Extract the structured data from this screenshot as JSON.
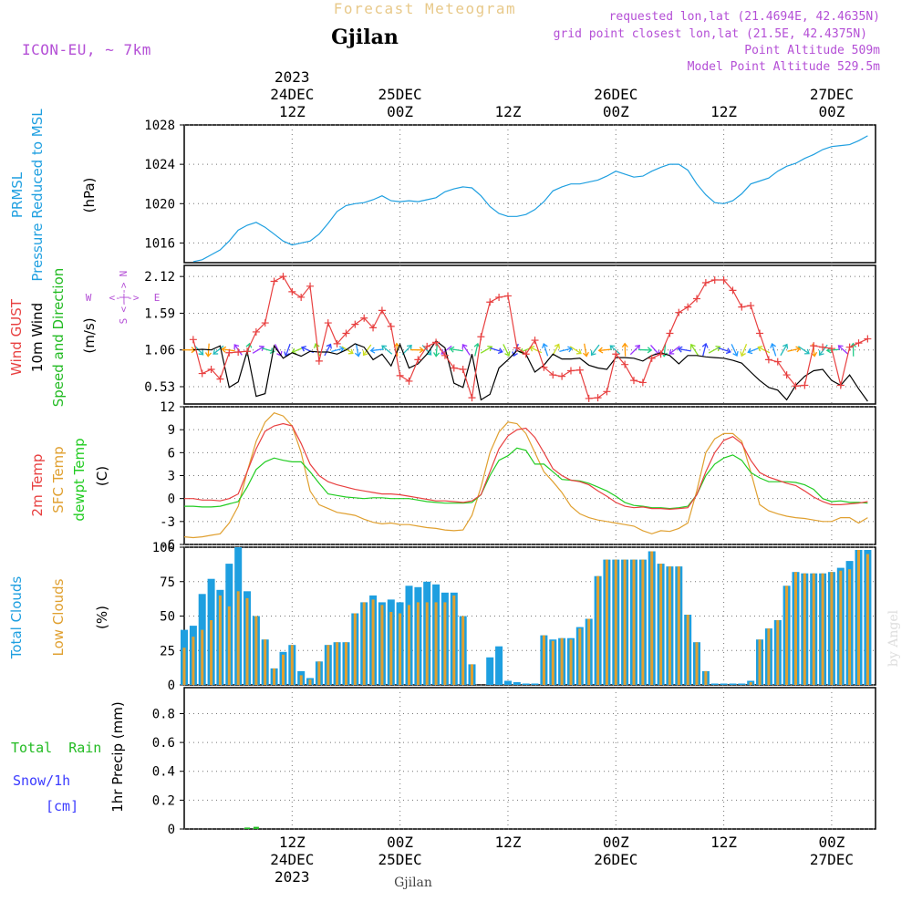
{
  "header": {
    "product": "Forecast Meteogram",
    "location": "Gjilan",
    "model": "ICON-EU, ~ 7km",
    "requested": "requested lon,lat (21.4694E, 42.4635N)",
    "gridpoint": "grid point closest lon,lat (21.5E, 42.4375N)",
    "point_alt": "Point Altitude 509m",
    "model_alt": "Model Point Altitude 529.5m"
  },
  "time_axis": {
    "top_labels": [
      {
        "hour": 12,
        "lines": [
          "2023",
          "24DEC",
          "12Z"
        ]
      },
      {
        "hour": 24,
        "lines": [
          "25DEC",
          "00Z"
        ]
      },
      {
        "hour": 36,
        "lines": [
          "12Z"
        ]
      },
      {
        "hour": 48,
        "lines": [
          "26DEC",
          "00Z"
        ]
      },
      {
        "hour": 60,
        "lines": [
          "12Z"
        ]
      },
      {
        "hour": 72,
        "lines": [
          "27DEC",
          "00Z"
        ]
      }
    ],
    "bottom_labels": [
      {
        "hour": 12,
        "lines": [
          "12Z",
          "24DEC",
          "2023"
        ]
      },
      {
        "hour": 24,
        "lines": [
          "00Z",
          "25DEC"
        ]
      },
      {
        "hour": 36,
        "lines": [
          "12Z"
        ]
      },
      {
        "hour": 48,
        "lines": [
          "00Z",
          "26DEC"
        ]
      },
      {
        "hour": 60,
        "lines": [
          "12Z"
        ]
      },
      {
        "hour": 72,
        "lines": [
          "00Z",
          "27DEC"
        ]
      }
    ],
    "footer": "Gjilan",
    "watermark": "by Angel"
  },
  "colors": {
    "pressure": "#1e9fe0",
    "gust": "#e84040",
    "wind": "#000000",
    "direction": "#22bb22",
    "t2m": "#e84040",
    "tsfc": "#e0a030",
    "dewpt": "#22cc22",
    "total_clouds": "#1e9fe0",
    "low_clouds": "#e0a030",
    "rain": "#22bb22",
    "snow": "#3b3bff"
  },
  "chart_data": [
    {
      "type": "line",
      "panel": "pressure",
      "labels": {
        "line1": "PRMSL",
        "line2": "Pressure Reduced to MSL",
        "unit": "(hPa)"
      },
      "ylim": [
        1014,
        1028
      ],
      "yticks": [
        1016,
        1020,
        1024,
        1028
      ],
      "grid": true,
      "x": [
        1,
        2,
        3,
        4,
        5,
        6,
        7,
        8,
        9,
        10,
        11,
        12,
        13,
        14,
        15,
        16,
        17,
        18,
        19,
        20,
        21,
        22,
        23,
        24,
        25,
        26,
        27,
        28,
        29,
        30,
        31,
        32,
        33,
        34,
        35,
        36,
        37,
        38,
        39,
        40,
        41,
        42,
        43,
        44,
        45,
        46,
        47,
        48,
        49,
        50,
        51,
        52,
        53,
        54,
        55,
        56,
        57,
        58,
        59,
        60,
        61,
        62,
        63,
        64,
        65,
        66,
        67,
        68,
        69,
        70,
        71,
        72,
        73,
        74,
        75,
        76
      ],
      "series": [
        {
          "name": "PRMSL",
          "values": [
            1014.1,
            1014.3,
            1014.8,
            1015.3,
            1016.2,
            1017.3,
            1017.8,
            1018.1,
            1017.6,
            1016.9,
            1016.2,
            1015.8,
            1016.0,
            1016.2,
            1016.9,
            1018.0,
            1019.2,
            1019.8,
            1020.0,
            1020.1,
            1020.4,
            1020.8,
            1020.3,
            1020.2,
            1020.3,
            1020.2,
            1020.4,
            1020.6,
            1021.2,
            1021.5,
            1021.7,
            1021.6,
            1020.8,
            1019.7,
            1019.0,
            1018.7,
            1018.7,
            1018.9,
            1019.4,
            1020.2,
            1021.3,
            1021.7,
            1022.0,
            1022.0,
            1022.2,
            1022.4,
            1022.8,
            1023.3,
            1023.0,
            1022.7,
            1022.8,
            1023.3,
            1023.7,
            1024.0,
            1024.0,
            1023.4,
            1022.0,
            1020.9,
            1020.1,
            1020.0,
            1020.3,
            1021.0,
            1022.0,
            1022.3,
            1022.6,
            1023.3,
            1023.8,
            1024.1,
            1024.6,
            1025.0,
            1025.5,
            1025.8,
            1025.9,
            1026.0,
            1026.4,
            1026.9
          ]
        }
      ]
    },
    {
      "type": "line",
      "panel": "wind",
      "labels": {
        "gust": "Wind GUST",
        "wind": "10m Wind",
        "dir": "Speed and Direction",
        "unit": "(m/s)",
        "compass_n": "N",
        "compass_e": "E",
        "compass_s": "S",
        "compass_w": "W",
        "compass_arrow": "<-|->"
      },
      "ylim": [
        0.28,
        2.28
      ],
      "yticks": [
        0.53,
        1.06,
        1.59,
        2.12
      ],
      "grid": true,
      "x": [
        1,
        2,
        3,
        4,
        5,
        6,
        7,
        8,
        9,
        10,
        11,
        12,
        13,
        14,
        15,
        16,
        17,
        18,
        19,
        20,
        21,
        22,
        23,
        24,
        25,
        26,
        27,
        28,
        29,
        30,
        31,
        32,
        33,
        34,
        35,
        36,
        37,
        38,
        39,
        40,
        41,
        42,
        43,
        44,
        45,
        46,
        47,
        48,
        49,
        50,
        51,
        52,
        53,
        54,
        55,
        56,
        57,
        58,
        59,
        60,
        61,
        62,
        63,
        64,
        65,
        66,
        67,
        68,
        69,
        70,
        71,
        72,
        73,
        74,
        75,
        76
      ],
      "series": [
        {
          "name": "Wind GUST",
          "values": [
            1.21,
            0.72,
            0.78,
            0.64,
            1.02,
            1.03,
            1.04,
            1.32,
            1.45,
            2.05,
            2.12,
            1.9,
            1.82,
            1.98,
            0.9,
            1.45,
            1.15,
            1.3,
            1.43,
            1.52,
            1.38,
            1.63,
            1.4,
            0.69,
            0.61,
            0.92,
            1.11,
            1.17,
            0.98,
            0.8,
            0.78,
            0.37,
            1.25,
            1.75,
            1.82,
            1.84,
            1.09,
            1.0,
            1.2,
            0.81,
            0.7,
            0.68,
            0.76,
            0.77,
            0.36,
            0.37,
            0.46,
            1.0,
            0.85,
            0.62,
            0.59,
            0.94,
            1.0,
            1.3,
            1.6,
            1.68,
            1.8,
            2.03,
            2.07,
            2.07,
            1.92,
            1.68,
            1.7,
            1.3,
            0.92,
            0.89,
            0.7,
            0.54,
            0.55,
            1.12,
            1.1,
            1.08,
            0.55,
            1.1,
            1.16,
            1.22
          ]
        },
        {
          "name": "10m Wind",
          "values": [
            1.06,
            1.07,
            1.06,
            1.12,
            0.52,
            0.6,
            1.04,
            0.39,
            0.43,
            1.12,
            0.94,
            1.02,
            0.97,
            1.04,
            1.03,
            1.03,
            1.0,
            1.06,
            1.15,
            1.1,
            0.92,
            1.0,
            0.83,
            1.14,
            0.8,
            0.86,
            1.0,
            1.19,
            1.09,
            0.58,
            0.52,
            1.0,
            0.34,
            0.42,
            0.8,
            0.92,
            1.05,
            1.0,
            0.74,
            0.84,
            1.0,
            0.93,
            0.93,
            0.94,
            0.84,
            0.8,
            0.78,
            0.95,
            0.95,
            0.94,
            0.9,
            0.98,
            1.02,
            0.98,
            0.86,
            0.98,
            0.98,
            0.96,
            0.95,
            0.94,
            0.91,
            0.87,
            0.74,
            0.62,
            0.52,
            0.48,
            0.34,
            0.55,
            0.68,
            0.76,
            0.78,
            0.62,
            0.55,
            0.7,
            0.5,
            0.32
          ]
        }
      ],
      "direction_arrows": {
        "count": 68,
        "y_value": 1.06
      }
    },
    {
      "type": "line",
      "panel": "temperature",
      "labels": {
        "t2m": "2m Temp",
        "tsfc": "SFC Temp",
        "dewpt": "dewpt Temp",
        "unit": "(C)"
      },
      "ylim": [
        -6,
        12
      ],
      "yticks": [
        -6,
        -3,
        0,
        3,
        6,
        9,
        12
      ],
      "grid": true,
      "x": [
        0,
        1,
        2,
        3,
        4,
        5,
        6,
        7,
        8,
        9,
        10,
        11,
        12,
        13,
        14,
        15,
        16,
        17,
        18,
        19,
        20,
        21,
        22,
        23,
        24,
        25,
        26,
        27,
        28,
        29,
        30,
        31,
        32,
        33,
        34,
        35,
        36,
        37,
        38,
        39,
        40,
        41,
        42,
        43,
        44,
        45,
        46,
        47,
        48,
        49,
        50,
        51,
        52,
        53,
        54,
        55,
        56,
        57,
        58,
        59,
        60,
        61,
        62,
        63,
        64,
        65,
        66,
        67,
        68,
        69,
        70,
        71,
        72,
        73,
        74,
        75,
        76
      ],
      "series": [
        {
          "name": "2m Temp",
          "values": [
            0.0,
            0.0,
            -0.2,
            -0.2,
            -0.3,
            0.0,
            0.6,
            3.5,
            6.5,
            8.8,
            9.5,
            9.8,
            9.5,
            7.2,
            4.5,
            3.0,
            2.2,
            1.8,
            1.5,
            1.2,
            1.0,
            0.8,
            0.6,
            0.6,
            0.5,
            0.3,
            0.1,
            -0.1,
            -0.3,
            -0.3,
            -0.4,
            -0.5,
            -0.3,
            0.5,
            3.5,
            6.5,
            8.2,
            9.0,
            9.2,
            8.0,
            6.0,
            3.9,
            3.0,
            2.4,
            2.2,
            1.8,
            1.0,
            0.3,
            -0.5,
            -1.0,
            -1.2,
            -1.1,
            -1.3,
            -1.3,
            -1.4,
            -1.3,
            -1.2,
            0.5,
            3.5,
            6.0,
            7.6,
            8.1,
            7.2,
            5.0,
            3.4,
            2.8,
            2.4,
            2.0,
            1.7,
            1.0,
            0.2,
            -0.4,
            -0.8,
            -0.8,
            -0.7,
            -0.6,
            -0.4
          ]
        },
        {
          "name": "SFC Temp",
          "values": [
            -5.0,
            -5.1,
            -5.0,
            -4.8,
            -4.6,
            -3.2,
            -1.0,
            3.5,
            7.5,
            10.0,
            11.2,
            10.8,
            9.5,
            6.0,
            1.0,
            -0.8,
            -1.3,
            -1.8,
            -2.0,
            -2.2,
            -2.7,
            -3.1,
            -3.3,
            -3.2,
            -3.4,
            -3.4,
            -3.6,
            -3.8,
            -3.9,
            -4.1,
            -4.2,
            -4.1,
            -2.2,
            1.5,
            6.0,
            8.7,
            10.0,
            9.8,
            8.5,
            6.0,
            3.5,
            2.2,
            0.8,
            -1.0,
            -2.0,
            -2.5,
            -2.8,
            -3.0,
            -3.2,
            -3.4,
            -3.6,
            -4.2,
            -4.6,
            -4.2,
            -4.3,
            -3.9,
            -3.2,
            1.0,
            6.0,
            7.8,
            8.5,
            8.5,
            7.5,
            3.5,
            -0.8,
            -1.6,
            -2.0,
            -2.3,
            -2.5,
            -2.6,
            -2.8,
            -3.0,
            -3.0,
            -2.5,
            -2.5,
            -3.2,
            -2.5
          ]
        },
        {
          "name": "dewpt Temp",
          "values": [
            -1.0,
            -1.0,
            -1.1,
            -1.1,
            -1.0,
            -0.7,
            -0.4,
            1.5,
            3.8,
            4.8,
            5.3,
            5.0,
            4.8,
            4.8,
            3.5,
            2.0,
            0.6,
            0.4,
            0.2,
            0.1,
            0.0,
            0.1,
            0.1,
            0.0,
            0.0,
            0.0,
            -0.2,
            -0.4,
            -0.5,
            -0.6,
            -0.6,
            -0.6,
            -0.5,
            0.5,
            3.0,
            5.0,
            5.6,
            6.6,
            6.3,
            4.5,
            4.5,
            3.5,
            2.5,
            2.4,
            2.3,
            2.0,
            1.5,
            1.0,
            0.3,
            -0.5,
            -0.9,
            -1.0,
            -1.2,
            -1.2,
            -1.3,
            -1.2,
            -1.0,
            0.5,
            3.0,
            4.5,
            5.3,
            5.7,
            5.0,
            3.4,
            2.7,
            2.2,
            2.2,
            2.2,
            2.1,
            1.8,
            1.2,
            0.0,
            -0.4,
            -0.3,
            -0.5,
            -0.5,
            -0.6
          ]
        }
      ]
    },
    {
      "type": "bar",
      "panel": "clouds",
      "labels": {
        "total": "Total Clouds",
        "low": "Low Clouds",
        "unit": "(%)"
      },
      "ylim": [
        0,
        100
      ],
      "yticks": [
        0,
        25,
        50,
        75,
        100
      ],
      "grid": true,
      "x": [
        0,
        1,
        2,
        3,
        4,
        5,
        6,
        7,
        8,
        9,
        10,
        11,
        12,
        13,
        14,
        15,
        16,
        17,
        18,
        19,
        20,
        21,
        22,
        23,
        24,
        25,
        26,
        27,
        28,
        29,
        30,
        31,
        32,
        33,
        34,
        35,
        36,
        37,
        38,
        39,
        40,
        41,
        42,
        43,
        44,
        45,
        46,
        47,
        48,
        49,
        50,
        51,
        52,
        53,
        54,
        55,
        56,
        57,
        58,
        59,
        60,
        61,
        62,
        63,
        64,
        65,
        66,
        67,
        68,
        69,
        70,
        71,
        72,
        73,
        74,
        75,
        76
      ],
      "series": [
        {
          "name": "Total Clouds",
          "values": [
            40,
            43,
            66,
            77,
            69,
            88,
            100,
            68,
            50,
            33,
            12,
            24,
            29,
            10,
            5,
            17,
            29,
            31,
            31,
            52,
            60,
            65,
            60,
            62,
            60,
            72,
            71,
            75,
            73,
            67,
            67,
            50,
            15,
            0,
            20,
            28,
            3,
            2,
            1,
            1,
            36,
            33,
            34,
            34,
            42,
            48,
            79,
            91,
            91,
            91,
            91,
            91,
            97,
            88,
            86,
            86,
            51,
            31,
            10,
            1,
            1,
            1,
            1,
            3,
            33,
            41,
            47,
            72,
            82,
            81,
            81,
            81,
            82,
            85,
            90,
            98,
            98
          ]
        },
        {
          "name": "Low Clouds",
          "values": [
            27,
            35,
            40,
            47,
            65,
            57,
            68,
            63,
            50,
            33,
            12,
            22,
            29,
            7,
            4,
            17,
            29,
            31,
            31,
            52,
            60,
            62,
            58,
            53,
            52,
            58,
            60,
            60,
            60,
            60,
            65,
            50,
            15,
            0,
            0,
            0,
            0,
            0,
            0,
            0,
            36,
            32,
            34,
            33,
            41,
            48,
            79,
            91,
            91,
            91,
            91,
            91,
            97,
            88,
            86,
            86,
            51,
            31,
            10,
            0,
            0,
            0,
            0,
            2,
            33,
            41,
            47,
            72,
            82,
            81,
            81,
            81,
            82,
            83,
            84,
            98,
            95
          ]
        }
      ]
    },
    {
      "type": "bar",
      "panel": "precip",
      "labels": {
        "rain": "Total  Rain",
        "snow": "Snow/1h",
        "snow_unit": "[cm]",
        "unit": "1hr Precip (mm)"
      },
      "ylim": [
        0,
        0.98
      ],
      "yticks": [
        0,
        0.2,
        0.4,
        0.6,
        0.8
      ],
      "ytick_labels": [
        "0",
        "0.2",
        "0.4",
        "0.6",
        "0.8"
      ],
      "grid": true,
      "x": [
        7,
        8
      ],
      "series": [
        {
          "name": "Total  Rain",
          "values": [
            0.01,
            0.015
          ]
        }
      ]
    }
  ]
}
